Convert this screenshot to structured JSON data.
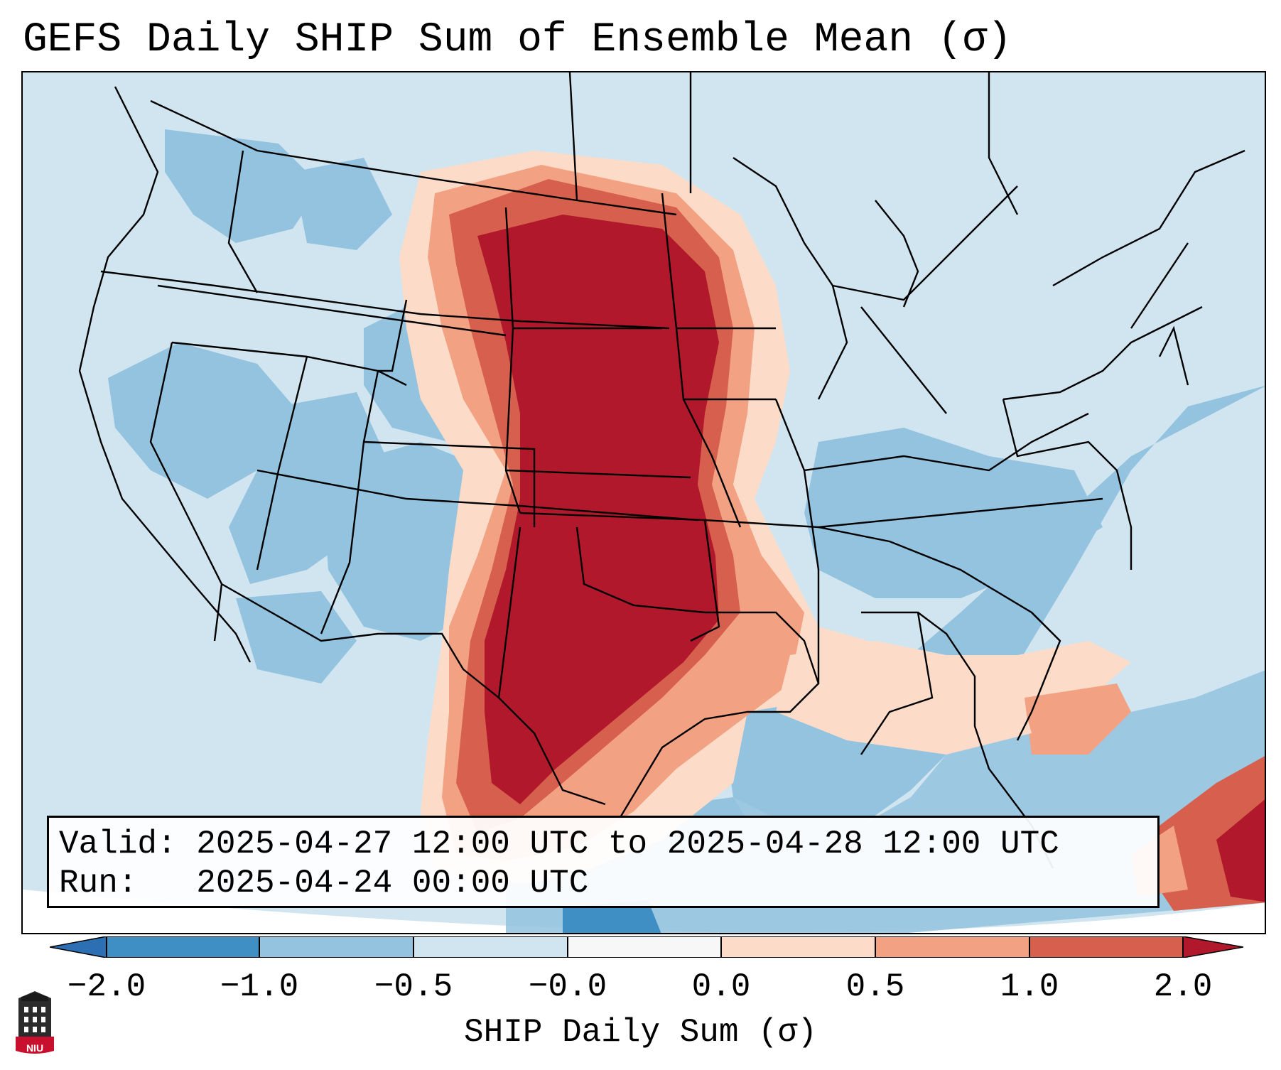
{
  "title": "GEFS Daily SHIP Sum of Ensemble Mean (σ)",
  "info": {
    "valid_line": "Valid: 2025-04-27 12:00 UTC to 2025-04-28 12:00 UTC",
    "run_line": "Run:   2025-04-24 00:00 UTC"
  },
  "colorbar": {
    "label": "SHIP Daily Sum (σ)",
    "ticks": [
      "−2.0",
      "−1.0",
      "−0.5",
      "−0.0",
      "0.0",
      "0.5",
      "1.0",
      "2.0"
    ],
    "colors": {
      "lt_neg2": "#2d6fb3",
      "neg2_neg1": "#3f8fc5",
      "neg1_neg05": "#93c3df",
      "neg05_0": "#d1e5f0",
      "zero": "#f7f7f7",
      "0_05": "#fcdcc8",
      "05_1": "#f2a283",
      "1_2": "#d6604d",
      "gt2": "#b2182b"
    }
  },
  "logo": {
    "text": "NIU",
    "color": "#c8102e"
  }
}
